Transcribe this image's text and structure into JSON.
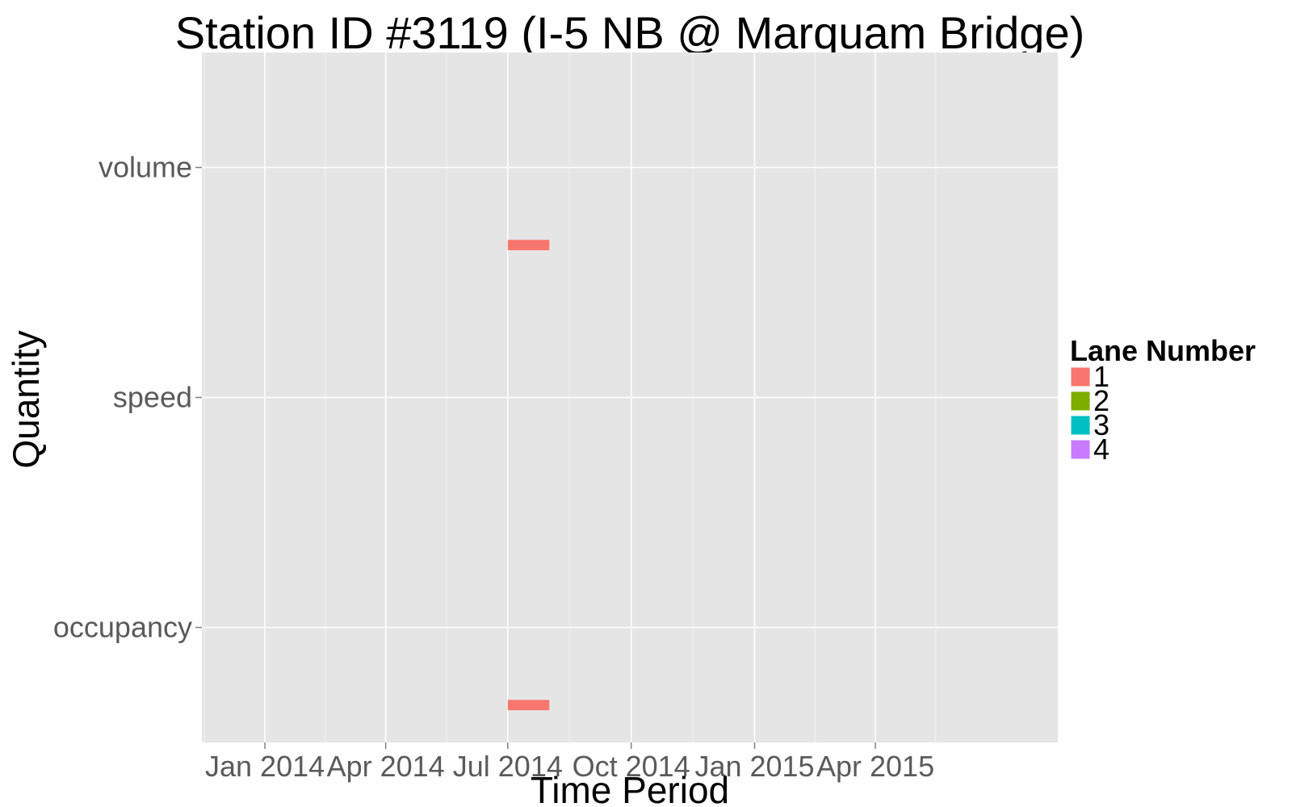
{
  "chart_data": {
    "type": "bar",
    "title": "Station ID #3119 (I-5 NB @ Marquam Bridge)",
    "xlabel": "Time Period",
    "ylabel": "Quantity",
    "x_ticks": [
      "Jan 2014",
      "Apr 2014",
      "Jul 2014",
      "Oct 2014",
      "Jan 2015",
      "Apr 2015"
    ],
    "x_tick_dates": [
      "2014-01-01",
      "2014-04-01",
      "2014-07-01",
      "2014-10-01",
      "2015-01-01",
      "2015-04-01"
    ],
    "xlim": [
      "2013-11-15",
      "2015-08-15"
    ],
    "y_categories": [
      "volume",
      "speed",
      "occupancy"
    ],
    "grid": true,
    "legend": {
      "title": "Lane Number",
      "position": "right",
      "items": [
        {
          "label": "1",
          "color": "#F8766D"
        },
        {
          "label": "2",
          "color": "#7CAE00"
        },
        {
          "label": "3",
          "color": "#00BFC4"
        },
        {
          "label": "4",
          "color": "#C77CFF"
        }
      ]
    },
    "series": [
      {
        "name": "1",
        "color": "#F8766D",
        "segments": [
          {
            "category": "volume",
            "start": "2014-07-01",
            "end": "2014-08-01"
          },
          {
            "category": "occupancy",
            "start": "2014-07-01",
            "end": "2014-08-01"
          }
        ]
      },
      {
        "name": "2",
        "color": "#7CAE00",
        "segments": []
      },
      {
        "name": "3",
        "color": "#00BFC4",
        "segments": []
      },
      {
        "name": "4",
        "color": "#C77CFF",
        "segments": []
      }
    ]
  }
}
